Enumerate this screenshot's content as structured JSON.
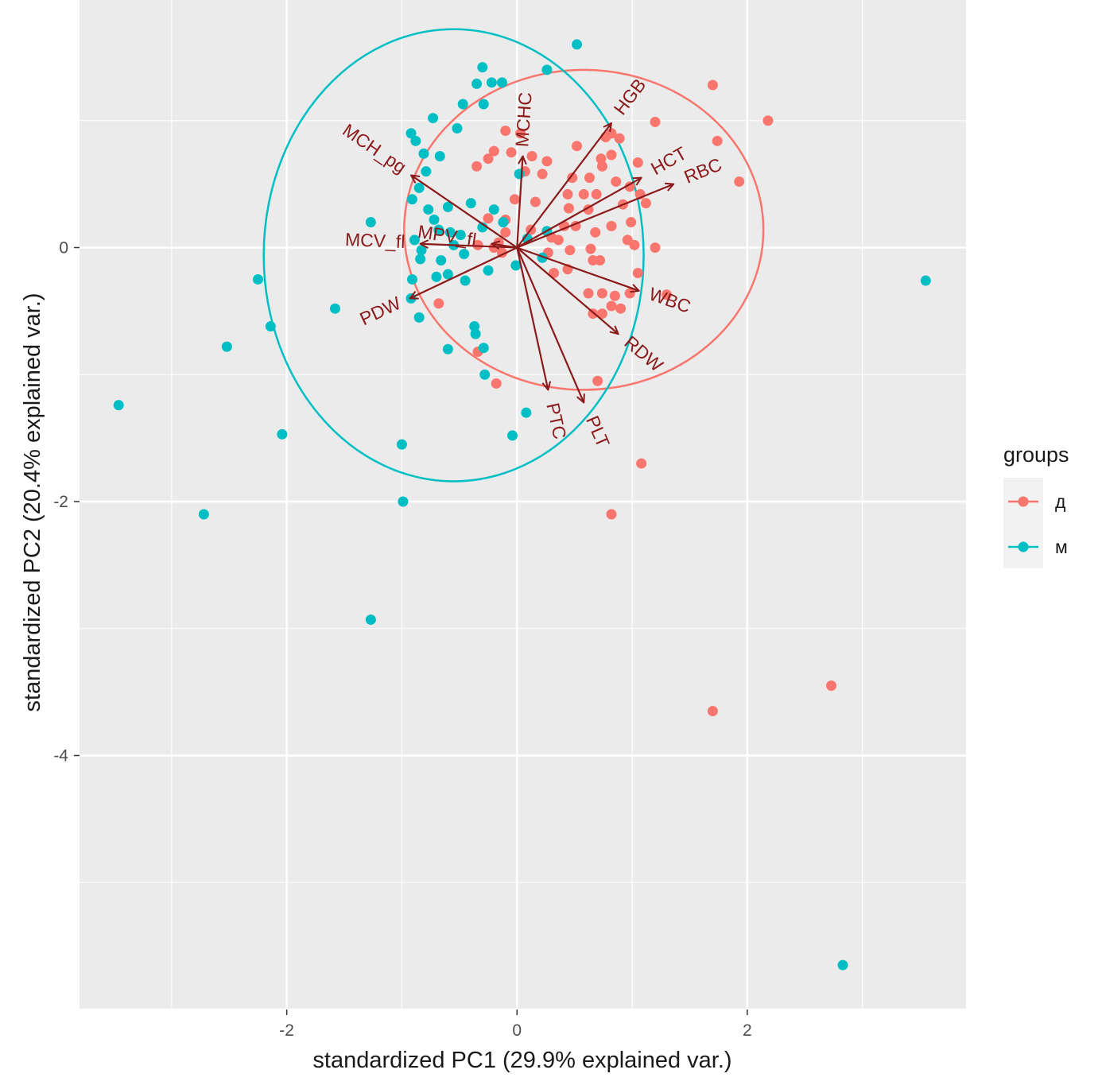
{
  "chart_data": {
    "type": "scatter",
    "xlabel": "standardized PC1 (29.9% explained var.)",
    "ylabel": "standardized PC2 (20.4% explained var.)",
    "xlim": [
      -3.8,
      3.9
    ],
    "ylim": [
      -6.0,
      1.95
    ],
    "x_ticks": [
      -2,
      0,
      2
    ],
    "y_ticks": [
      0,
      -2,
      -4
    ],
    "x_tick_labels": [
      "-2",
      "0",
      "2"
    ],
    "y_tick_labels": [
      "0",
      "-2",
      "-4"
    ],
    "grid": true,
    "legend": {
      "title": "groups",
      "position": "right",
      "entries": [
        {
          "label": "д",
          "color": "#F8766D"
        },
        {
          "label": "м",
          "color": "#00BFC4"
        }
      ]
    },
    "series": [
      {
        "name": "д",
        "color": "#F8766D",
        "points": [
          [
            1.7,
            1.28
          ],
          [
            2.18,
            1.0
          ],
          [
            1.74,
            0.84
          ],
          [
            1.2,
            0.99
          ],
          [
            1.93,
            0.52
          ],
          [
            0.82,
            0.9
          ],
          [
            0.77,
            0.87
          ],
          [
            0.89,
            0.86
          ],
          [
            0.73,
            0.7
          ],
          [
            0.82,
            0.73
          ],
          [
            1.05,
            0.67
          ],
          [
            0.74,
            0.64
          ],
          [
            0.48,
            0.55
          ],
          [
            0.63,
            0.55
          ],
          [
            0.86,
            0.52
          ],
          [
            0.98,
            0.48
          ],
          [
            0.44,
            0.42
          ],
          [
            0.58,
            0.42
          ],
          [
            0.69,
            0.42
          ],
          [
            1.07,
            0.42
          ],
          [
            0.45,
            0.31
          ],
          [
            0.62,
            0.3
          ],
          [
            0.92,
            0.34
          ],
          [
            1.12,
            0.35
          ],
          [
            0.41,
            0.17
          ],
          [
            0.51,
            0.17
          ],
          [
            0.82,
            0.17
          ],
          [
            0.99,
            0.2
          ],
          [
            0.36,
            0.06
          ],
          [
            0.68,
            0.12
          ],
          [
            0.96,
            0.06
          ],
          [
            1.02,
            0.02
          ],
          [
            1.2,
            0.0
          ],
          [
            0.27,
            -0.04
          ],
          [
            0.46,
            -0.02
          ],
          [
            0.64,
            -0.01
          ],
          [
            0.66,
            -0.1
          ],
          [
            0.72,
            -0.1
          ],
          [
            0.44,
            -0.17
          ],
          [
            1.05,
            -0.2
          ],
          [
            0.62,
            -0.36
          ],
          [
            0.74,
            -0.36
          ],
          [
            0.98,
            -0.36
          ],
          [
            1.3,
            -0.37
          ],
          [
            0.66,
            -0.52
          ],
          [
            0.74,
            -0.52
          ],
          [
            0.85,
            -0.38
          ],
          [
            0.9,
            -0.48
          ],
          [
            0.82,
            -0.46
          ],
          [
            0.7,
            -1.05
          ],
          [
            -0.34,
            -0.82
          ],
          [
            -0.18,
            -1.07
          ],
          [
            -0.68,
            -0.44
          ],
          [
            1.08,
            -1.7
          ],
          [
            0.82,
            -2.1
          ],
          [
            1.7,
            -3.65
          ],
          [
            2.73,
            -3.45
          ],
          [
            -0.1,
            0.92
          ],
          [
            -0.2,
            0.76
          ],
          [
            -0.05,
            0.75
          ],
          [
            0.13,
            0.72
          ],
          [
            0.26,
            0.68
          ],
          [
            -0.25,
            0.7
          ],
          [
            0.07,
            0.6
          ],
          [
            0.22,
            0.58
          ],
          [
            -0.02,
            0.38
          ],
          [
            0.16,
            0.36
          ],
          [
            -0.1,
            0.22
          ],
          [
            0.12,
            0.14
          ],
          [
            -0.16,
            0.04
          ],
          [
            -0.13,
            -0.04
          ],
          [
            -0.2,
            0.0
          ],
          [
            0.3,
            0.08
          ],
          [
            -0.34,
            0.02
          ],
          [
            -0.35,
            0.64
          ],
          [
            -0.25,
            0.23
          ],
          [
            -0.1,
            0.12
          ],
          [
            0.32,
            -0.2
          ],
          [
            0.52,
            0.8
          ],
          [
            0.03,
            0.9
          ]
        ]
      },
      {
        "name": "м",
        "color": "#00BFC4",
        "points": [
          [
            0.52,
            1.6
          ],
          [
            -0.3,
            1.42
          ],
          [
            0.26,
            1.4
          ],
          [
            -0.35,
            1.29
          ],
          [
            -0.22,
            1.3
          ],
          [
            -0.13,
            1.3
          ],
          [
            -0.47,
            1.13
          ],
          [
            -0.29,
            1.13
          ],
          [
            -0.73,
            1.02
          ],
          [
            -0.52,
            0.94
          ],
          [
            -0.92,
            0.9
          ],
          [
            -0.88,
            0.84
          ],
          [
            -0.81,
            0.74
          ],
          [
            -0.67,
            0.72
          ],
          [
            -0.79,
            0.6
          ],
          [
            -0.85,
            0.47
          ],
          [
            -0.91,
            0.38
          ],
          [
            -0.77,
            0.3
          ],
          [
            -0.72,
            0.22
          ],
          [
            -0.68,
            0.14
          ],
          [
            -0.58,
            0.12
          ],
          [
            -0.49,
            0.1
          ],
          [
            -0.55,
            0.02
          ],
          [
            -0.46,
            -0.05
          ],
          [
            -0.66,
            -0.1
          ],
          [
            -0.89,
            0.06
          ],
          [
            -0.83,
            -0.02
          ],
          [
            -0.84,
            -0.09
          ],
          [
            -0.91,
            -0.25
          ],
          [
            -0.7,
            -0.23
          ],
          [
            -0.6,
            -0.21
          ],
          [
            -0.45,
            -0.26
          ],
          [
            -0.92,
            -0.4
          ],
          [
            -0.85,
            -0.55
          ],
          [
            -0.37,
            -0.62
          ],
          [
            -0.36,
            -0.68
          ],
          [
            -0.29,
            -0.79
          ],
          [
            -0.6,
            -0.8
          ],
          [
            -0.28,
            -1.0
          ],
          [
            0.08,
            -1.3
          ],
          [
            -0.04,
            -1.48
          ],
          [
            -1.0,
            -1.55
          ],
          [
            -0.99,
            -2.0
          ],
          [
            -1.27,
            -2.93
          ],
          [
            -1.27,
            0.2
          ],
          [
            -1.58,
            -0.48
          ],
          [
            -2.14,
            -0.62
          ],
          [
            -2.25,
            -0.25
          ],
          [
            -2.52,
            -0.78
          ],
          [
            -3.46,
            -1.24
          ],
          [
            -2.04,
            -1.47
          ],
          [
            -2.72,
            -2.1
          ],
          [
            3.55,
            -0.26
          ],
          [
            2.83,
            -5.65
          ],
          [
            0.02,
            0.58
          ],
          [
            0.26,
            0.13
          ],
          [
            0.22,
            -0.08
          ],
          [
            0.09,
            0.07
          ],
          [
            -0.01,
            -0.14
          ],
          [
            -0.12,
            0.2
          ],
          [
            -0.25,
            -0.18
          ],
          [
            -0.3,
            0.16
          ],
          [
            -0.4,
            0.35
          ],
          [
            -0.6,
            0.32
          ],
          [
            -0.2,
            0.3
          ]
        ]
      }
    ],
    "ellipses": [
      {
        "group": "д",
        "color": "#F8766D",
        "cx": 0.58,
        "cy": 0.14,
        "rx": 1.56,
        "ry": 1.26
      },
      {
        "group": "м",
        "color": "#00BFC4",
        "cx": -0.55,
        "cy": -0.06,
        "rx": 1.65,
        "ry": 1.78
      }
    ],
    "loadings": [
      {
        "label": "MCHC",
        "x": 0.05,
        "y": 0.72
      },
      {
        "label": "HGB",
        "x": 0.82,
        "y": 0.98
      },
      {
        "label": "HCT",
        "x": 1.08,
        "y": 0.55
      },
      {
        "label": "RBC",
        "x": 1.36,
        "y": 0.5
      },
      {
        "label": "WBC",
        "x": 1.06,
        "y": -0.34
      },
      {
        "label": "RDW",
        "x": 0.88,
        "y": -0.68
      },
      {
        "label": "PLT",
        "x": 0.58,
        "y": -1.22
      },
      {
        "label": "PTC",
        "x": 0.27,
        "y": -1.12
      },
      {
        "label": "MCH_pg",
        "x": -0.92,
        "y": 0.57
      },
      {
        "label": "MCV_fl",
        "x": -0.84,
        "y": 0.03
      },
      {
        "label": "MPV_fl",
        "x": -0.22,
        "y": 0.03
      },
      {
        "label": "PDW",
        "x": -0.93,
        "y": -0.4
      }
    ]
  }
}
